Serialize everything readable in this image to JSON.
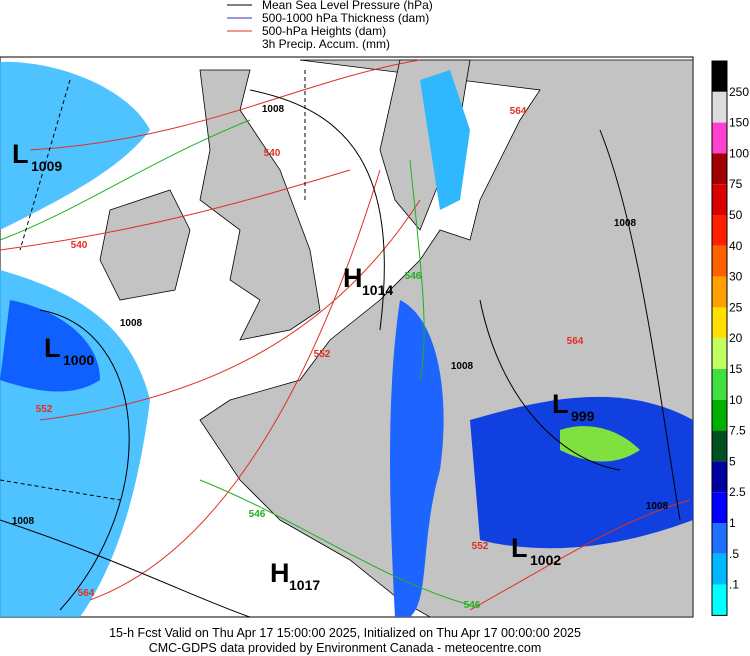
{
  "legend": {
    "items": [
      {
        "label": "Mean Sea Level Pressure (hPa)",
        "color": "#000000"
      },
      {
        "label": "500-1000 hPa Thickness (dam)",
        "color": "#3030c0"
      },
      {
        "label": "500-hPa Heights (dam)",
        "color": "#e03020"
      },
      {
        "label": "3h Precip. Accum. (mm)"
      }
    ]
  },
  "colorbar": {
    "top_color": "#000000",
    "levels": [
      {
        "label": "250",
        "color": "#dcdcdc"
      },
      {
        "label": "150",
        "color": "#ff40d0"
      },
      {
        "label": "100",
        "color": "#a00000"
      },
      {
        "label": "75",
        "color": "#d80000"
      },
      {
        "label": "50",
        "color": "#ff2000"
      },
      {
        "label": "40",
        "color": "#ff6000"
      },
      {
        "label": "30",
        "color": "#ffa000"
      },
      {
        "label": "25",
        "color": "#ffe000"
      },
      {
        "label": "20",
        "color": "#c0ff60"
      },
      {
        "label": "15",
        "color": "#40e040"
      },
      {
        "label": "10",
        "color": "#00b000"
      },
      {
        "label": "7.5",
        "color": "#005020"
      },
      {
        "label": "5",
        "color": "#0000a0"
      },
      {
        "label": "2.5",
        "color": "#0000ff"
      },
      {
        "label": "1",
        "color": "#2070ff"
      },
      {
        "label": ".5",
        "color": "#00b8ff"
      },
      {
        "label": ".1",
        "color": "#00ffff"
      }
    ],
    "bottom_color": "#ffffff"
  },
  "pressure_centers": [
    {
      "letter": "L",
      "value": "1009"
    },
    {
      "letter": "L",
      "value": "1000"
    },
    {
      "letter": "H",
      "value": "1014"
    },
    {
      "letter": "L",
      "value": "999"
    },
    {
      "letter": "L",
      "value": "1002"
    },
    {
      "letter": "H",
      "value": "1017"
    }
  ],
  "contour_labels": [
    {
      "text": "1008",
      "color": "#000000"
    },
    {
      "text": "540",
      "color": "#e03020"
    },
    {
      "text": "564",
      "color": "#e03020"
    },
    {
      "text": "1008",
      "color": "#000000"
    },
    {
      "text": "540",
      "color": "#e03020"
    },
    {
      "text": "546",
      "color": "#20b020"
    },
    {
      "text": "1008",
      "color": "#000000"
    },
    {
      "text": "552",
      "color": "#e03020"
    },
    {
      "text": "1008",
      "color": "#000000"
    },
    {
      "text": "564",
      "color": "#e03020"
    },
    {
      "text": "552",
      "color": "#e03020"
    },
    {
      "text": "546",
      "color": "#20b020"
    },
    {
      "text": "1008",
      "color": "#000000"
    },
    {
      "text": "1008",
      "color": "#000000"
    },
    {
      "text": "552",
      "color": "#e03020"
    },
    {
      "text": "564",
      "color": "#e03020"
    },
    {
      "text": "546",
      "color": "#20b020"
    }
  ],
  "footer": {
    "line1": "15-h Fcst Valid on Thu Apr 17 15:00:00 2025, Initialized on Thu Apr 17 00:00:00 2025",
    "line2": "CMC-GDPS data provided by Environment Canada - meteocentre.com"
  }
}
